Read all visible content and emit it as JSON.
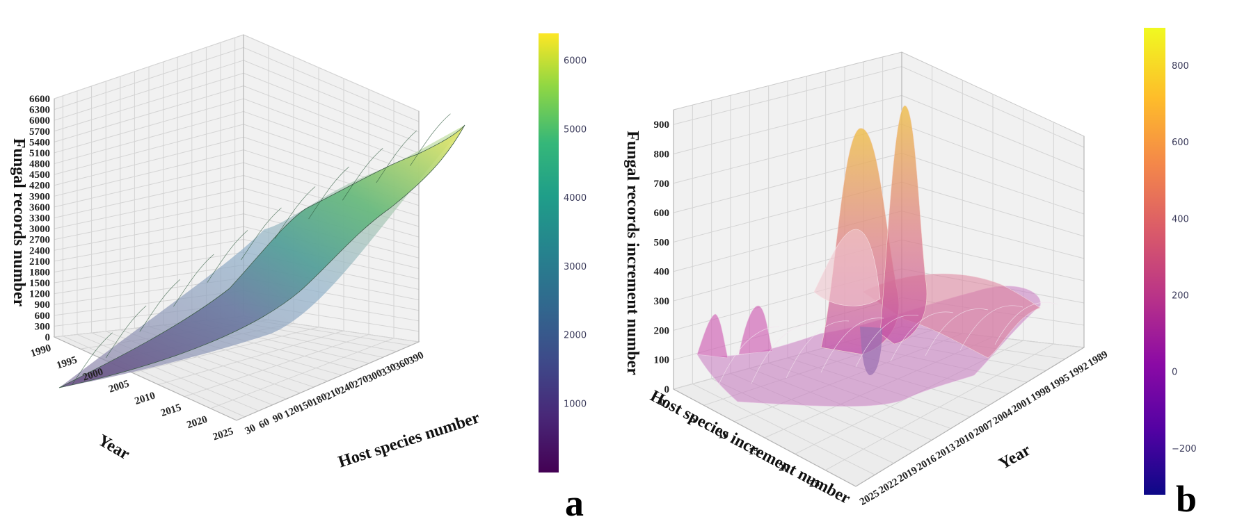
{
  "chart_data": [
    {
      "type": "surface",
      "panel_label": "a",
      "xlabel": "Year",
      "ylabel": "Host species number",
      "zlabel": "Fungal records number",
      "x_ticks": [
        "1990",
        "1995",
        "2000",
        "2005",
        "2010",
        "2015",
        "2020",
        "2025"
      ],
      "y_ticks": [
        "30",
        "60",
        "90",
        "120",
        "150",
        "180",
        "210",
        "240",
        "270",
        "300",
        "330",
        "360",
        "390"
      ],
      "z_ticks": [
        "0",
        "300",
        "600",
        "900",
        "1200",
        "1500",
        "1800",
        "2100",
        "2400",
        "2700",
        "3000",
        "3300",
        "3600",
        "3900",
        "4200",
        "4500",
        "4800",
        "5100",
        "5400",
        "5700",
        "6000",
        "6300",
        "6600"
      ],
      "xlim": [
        1990,
        2025
      ],
      "ylim": [
        0,
        400
      ],
      "zlim": [
        0,
        6600
      ],
      "colorscale": "viridis",
      "colorbar_ticks": [
        "1000",
        "2000",
        "3000",
        "4000",
        "5000",
        "6000"
      ],
      "colorbar_range": [
        0,
        6400
      ],
      "surface_ridge": [
        {
          "x": 1990,
          "y": 0,
          "z": 0
        },
        {
          "x": 1995,
          "y": 60,
          "z": 250
        },
        {
          "x": 2000,
          "y": 110,
          "z": 700
        },
        {
          "x": 2005,
          "y": 160,
          "z": 1400
        },
        {
          "x": 2010,
          "y": 210,
          "z": 2600
        },
        {
          "x": 2015,
          "y": 260,
          "z": 3900
        },
        {
          "x": 2020,
          "y": 320,
          "z": 5000
        },
        {
          "x": 2025,
          "y": 390,
          "z": 6400
        }
      ],
      "grid": true
    },
    {
      "type": "surface",
      "panel_label": "b",
      "xlabel": "Host species increment number",
      "ylabel": "Year",
      "zlabel": "Fungal records increment number",
      "x_ticks": [
        "0",
        "5",
        "10",
        "15",
        "20",
        "25"
      ],
      "y_ticks": [
        "1989",
        "1992",
        "1995",
        "1998",
        "2001",
        "2004",
        "2007",
        "2010",
        "2013",
        "2016",
        "2019",
        "2022",
        "2025"
      ],
      "z_ticks": [
        "0",
        "100",
        "200",
        "300",
        "400",
        "500",
        "600",
        "700",
        "800",
        "900"
      ],
      "xlim": [
        0,
        30
      ],
      "ylim": [
        1989,
        2025
      ],
      "zlim": [
        0,
        950
      ],
      "colorscale": "plasma",
      "colorbar_ticks": [
        "−200",
        "0",
        "200",
        "400",
        "600",
        "800"
      ],
      "colorbar_range": [
        -320,
        900
      ],
      "peaks": [
        {
          "x": 16,
          "y": 2010,
          "z": 830
        },
        {
          "x": 14,
          "y": 2001,
          "z": 880
        },
        {
          "x": 12,
          "y": 2013,
          "z": 560
        },
        {
          "x": 4,
          "y": 2022,
          "z": 220
        },
        {
          "x": 7,
          "y": 2019,
          "z": 260
        }
      ],
      "grid": true
    }
  ]
}
